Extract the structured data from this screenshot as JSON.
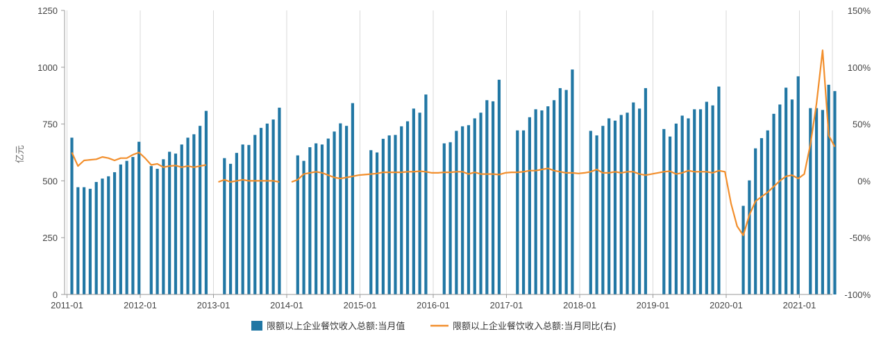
{
  "chart_data": {
    "type": "bar+line",
    "ylabel": "亿元",
    "left_ylim": [
      0,
      1250
    ],
    "left_yticks": [
      "0",
      "250",
      "500",
      "750",
      "1000",
      "1250"
    ],
    "right_ylim": [
      -100,
      150
    ],
    "right_yticks": [
      "-100%",
      "-50%",
      "0%",
      "50%",
      "100%",
      "150%"
    ],
    "x_tick_labels": [
      "2011-01",
      "2012-01",
      "2013-01",
      "2014-01",
      "2015-01",
      "2016-01",
      "2017-01",
      "2018-01",
      "2019-01",
      "2020-01",
      "2021-01"
    ],
    "x_start": "2011-01",
    "grid": "vertical",
    "legend_position": "bottom",
    "bar_color": "#2177a4",
    "line_color": "#f28e2b",
    "series": [
      {
        "name": "限额以上企业餐饮收入总额:当月值",
        "type": "bar",
        "axis": "left",
        "values": [
          690,
          472,
          472,
          465,
          495,
          510,
          520,
          538,
          572,
          588,
          605,
          672,
          null,
          565,
          553,
          595,
          628,
          620,
          660,
          690,
          705,
          742,
          808,
          null,
          null,
          600,
          575,
          623,
          660,
          658,
          702,
          733,
          752,
          770,
          822,
          null,
          null,
          612,
          588,
          648,
          665,
          660,
          686,
          717,
          753,
          742,
          842,
          null,
          null,
          635,
          625,
          685,
          700,
          702,
          740,
          762,
          818,
          800,
          880,
          null,
          null,
          665,
          670,
          720,
          740,
          745,
          775,
          800,
          855,
          850,
          945,
          null,
          null,
          722,
          722,
          780,
          815,
          810,
          828,
          855,
          908,
          900,
          990,
          null,
          null,
          720,
          700,
          742,
          775,
          765,
          790,
          800,
          845,
          818,
          908,
          null,
          null,
          728,
          695,
          752,
          787,
          775,
          815,
          815,
          848,
          832,
          915,
          null,
          null,
          null,
          390,
          502,
          643,
          688,
          722,
          795,
          836,
          910,
          858,
          960,
          null,
          820,
          820,
          812,
          923,
          895
        ]
      },
      {
        "name": "限额以上企业餐饮收入总额:当月同比(右)",
        "type": "line",
        "axis": "right",
        "values": [
          25,
          13,
          18,
          18.5,
          19,
          21,
          20,
          18,
          20,
          20,
          23,
          25,
          20,
          14,
          15,
          12,
          13,
          13.5,
          12,
          13,
          12,
          13,
          14,
          null,
          -1,
          1,
          -1,
          0,
          1,
          0,
          0,
          0,
          0,
          0,
          -1,
          null,
          -1,
          1,
          6,
          7,
          8,
          7,
          5,
          3,
          2,
          3,
          4,
          5,
          5.5,
          6,
          6.5,
          7.5,
          7.5,
          7.5,
          7.5,
          8,
          8,
          8.5,
          8,
          7,
          7,
          7.5,
          7.5,
          8,
          8,
          6,
          7.5,
          6,
          6,
          6,
          5.5,
          7,
          7.5,
          7.5,
          8,
          9,
          9,
          10,
          11,
          9,
          8,
          7,
          7,
          6.5,
          7,
          8,
          10,
          7,
          7,
          8,
          7,
          8,
          8,
          6,
          5,
          6,
          7,
          8,
          8.5,
          6,
          7,
          9,
          8,
          8,
          8,
          7,
          9,
          8,
          -20,
          -40,
          -48,
          -30,
          -18,
          -14,
          -10,
          -5,
          0,
          4,
          5,
          2,
          6,
          32,
          68,
          115,
          40,
          30
        ]
      }
    ]
  }
}
